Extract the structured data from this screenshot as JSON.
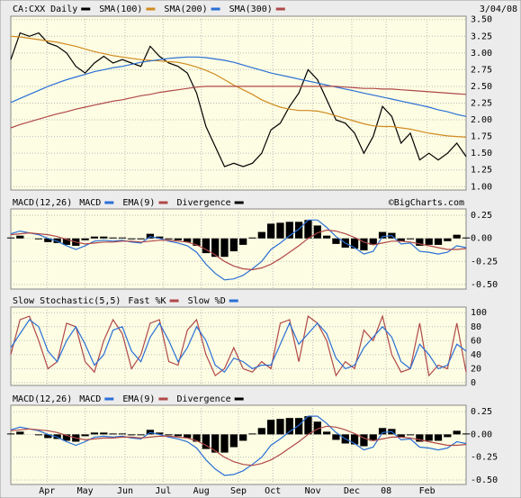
{
  "chart_data": [
    {
      "type": "line",
      "date": "3/04/08",
      "ylim": [
        0.95,
        3.55
      ],
      "yticks": [
        {
          "value": 1.0,
          "label": "1.00"
        },
        1.25,
        {
          "value": 1.5,
          "label": "1.50"
        },
        1.75,
        {
          "value": 2.0,
          "label": "2.00"
        },
        2.25,
        {
          "value": 2.5,
          "label": "2.50"
        },
        2.75,
        {
          "value": 3.0,
          "label": "3.00"
        },
        3.25,
        {
          "value": 3.5,
          "label": "3.50"
        }
      ],
      "series": [
        {
          "name": "CA:CXX Daily",
          "color": "#000000",
          "values": [
            2.9,
            3.3,
            3.25,
            3.3,
            3.15,
            3.1,
            3.0,
            2.8,
            2.7,
            2.85,
            2.95,
            2.85,
            2.9,
            2.85,
            2.8,
            3.1,
            2.95,
            2.85,
            2.8,
            2.7,
            2.4,
            1.9,
            1.6,
            1.3,
            1.35,
            1.3,
            1.35,
            1.5,
            1.85,
            1.95,
            2.2,
            2.4,
            2.75,
            2.6,
            2.3,
            2.0,
            1.95,
            1.8,
            1.5,
            1.75,
            2.2,
            2.05,
            1.65,
            1.8,
            1.4,
            1.5,
            1.4,
            1.5,
            1.65,
            1.45
          ]
        },
        {
          "name": "SMA(100)",
          "color": "#d08a20",
          "values": [
            3.25,
            3.24,
            3.22,
            3.2,
            3.18,
            3.16,
            3.13,
            3.1,
            3.06,
            3.02,
            2.99,
            2.96,
            2.94,
            2.92,
            2.9,
            2.89,
            2.88,
            2.87,
            2.86,
            2.83,
            2.79,
            2.74,
            2.68,
            2.6,
            2.52,
            2.45,
            2.38,
            2.3,
            2.24,
            2.19,
            2.16,
            2.14,
            2.14,
            2.13,
            2.1,
            2.06,
            2.02,
            1.98,
            1.94,
            1.91,
            1.9,
            1.9,
            1.88,
            1.86,
            1.83,
            1.8,
            1.78,
            1.76,
            1.75,
            1.74
          ]
        },
        {
          "name": "SMA(200)",
          "color": "#2a6fd6",
          "values": [
            2.26,
            2.32,
            2.38,
            2.44,
            2.5,
            2.55,
            2.6,
            2.64,
            2.68,
            2.72,
            2.75,
            2.78,
            2.8,
            2.83,
            2.86,
            2.88,
            2.9,
            2.92,
            2.93,
            2.94,
            2.94,
            2.93,
            2.91,
            2.89,
            2.86,
            2.82,
            2.78,
            2.74,
            2.7,
            2.67,
            2.64,
            2.61,
            2.58,
            2.55,
            2.52,
            2.49,
            2.46,
            2.43,
            2.4,
            2.37,
            2.34,
            2.31,
            2.28,
            2.25,
            2.22,
            2.19,
            2.15,
            2.12,
            2.08,
            2.05
          ]
        },
        {
          "name": "SMA(300)",
          "color": "#b04848",
          "values": [
            1.88,
            1.93,
            1.97,
            2.01,
            2.05,
            2.09,
            2.12,
            2.16,
            2.19,
            2.22,
            2.25,
            2.28,
            2.3,
            2.33,
            2.36,
            2.38,
            2.41,
            2.43,
            2.45,
            2.47,
            2.49,
            2.5,
            2.5,
            2.5,
            2.5,
            2.5,
            2.5,
            2.5,
            2.5,
            2.5,
            2.5,
            2.5,
            2.5,
            2.5,
            2.5,
            2.5,
            2.49,
            2.48,
            2.47,
            2.47,
            2.46,
            2.46,
            2.45,
            2.44,
            2.43,
            2.42,
            2.41,
            2.4,
            2.39,
            2.38
          ]
        }
      ]
    },
    {
      "type": "macd",
      "title": "MACD(12,26)",
      "note": "©BigCharts.com",
      "ylim": [
        -0.55,
        0.32
      ],
      "yticks": [
        0.25,
        {
          "value": 0.0,
          "label": "0.00"
        },
        -0.25,
        {
          "value": -0.5,
          "label": "-0.50"
        }
      ],
      "series": [
        {
          "name": "MACD",
          "color": "#2a6fd6",
          "values": [
            0.05,
            0.08,
            0.06,
            0.04,
            0.0,
            -0.03,
            -0.08,
            -0.12,
            -0.08,
            -0.03,
            -0.02,
            -0.03,
            -0.02,
            -0.04,
            -0.05,
            0.02,
            0.0,
            -0.03,
            -0.05,
            -0.08,
            -0.15,
            -0.28,
            -0.38,
            -0.45,
            -0.44,
            -0.4,
            -0.33,
            -0.25,
            -0.12,
            -0.05,
            0.03,
            0.1,
            0.2,
            0.2,
            0.12,
            0.02,
            -0.05,
            -0.1,
            -0.17,
            -0.14,
            0.02,
            0.03,
            -0.06,
            -0.05,
            -0.14,
            -0.15,
            -0.17,
            -0.15,
            -0.08,
            -0.1
          ]
        },
        {
          "name": "EMA(9)",
          "color": "#b04848",
          "values": [
            0.04,
            0.05,
            0.06,
            0.05,
            0.04,
            0.02,
            -0.01,
            -0.04,
            -0.06,
            -0.05,
            -0.04,
            -0.04,
            -0.03,
            -0.03,
            -0.04,
            -0.03,
            -0.02,
            -0.02,
            -0.03,
            -0.04,
            -0.07,
            -0.12,
            -0.18,
            -0.25,
            -0.3,
            -0.33,
            -0.34,
            -0.32,
            -0.28,
            -0.22,
            -0.15,
            -0.08,
            0.0,
            0.06,
            0.09,
            0.08,
            0.05,
            0.01,
            -0.04,
            -0.07,
            -0.05,
            -0.03,
            -0.03,
            -0.04,
            -0.06,
            -0.08,
            -0.1,
            -0.12,
            -0.12,
            -0.11
          ]
        },
        {
          "name": "Divergence",
          "color": "#000000",
          "style": "bar",
          "values": [
            0.01,
            0.03,
            0.0,
            -0.01,
            -0.04,
            -0.05,
            -0.07,
            -0.08,
            -0.02,
            0.02,
            0.02,
            0.01,
            0.01,
            -0.01,
            -0.01,
            0.05,
            0.02,
            -0.01,
            -0.02,
            -0.04,
            -0.08,
            -0.16,
            -0.2,
            -0.2,
            -0.14,
            -0.07,
            0.01,
            0.07,
            0.16,
            0.17,
            0.18,
            0.18,
            0.2,
            0.14,
            0.03,
            -0.06,
            -0.1,
            -0.11,
            -0.13,
            -0.07,
            0.07,
            0.06,
            -0.03,
            -0.01,
            -0.08,
            -0.07,
            -0.07,
            -0.03,
            0.04,
            0.01
          ]
        }
      ]
    },
    {
      "type": "line",
      "title": "Slow Stochastic(5,5)",
      "ylim": [
        -4,
        108
      ],
      "yticks": [
        0,
        20,
        40,
        60,
        80,
        100
      ],
      "series": [
        {
          "name": "Fast %K",
          "color": "#b04848",
          "values": [
            40,
            90,
            95,
            60,
            20,
            30,
            85,
            80,
            30,
            15,
            60,
            90,
            70,
            20,
            40,
            85,
            90,
            30,
            25,
            75,
            90,
            40,
            10,
            20,
            50,
            20,
            15,
            30,
            20,
            85,
            90,
            30,
            95,
            85,
            60,
            10,
            30,
            20,
            75,
            60,
            95,
            40,
            15,
            20,
            85,
            10,
            25,
            20,
            85,
            15
          ]
        },
        {
          "name": "Slow %D",
          "color": "#2a6fd6",
          "values": [
            50,
            70,
            90,
            80,
            45,
            30,
            60,
            80,
            55,
            25,
            40,
            75,
            80,
            45,
            30,
            65,
            85,
            60,
            30,
            50,
            80,
            60,
            25,
            15,
            35,
            30,
            20,
            25,
            25,
            55,
            85,
            55,
            70,
            85,
            70,
            35,
            20,
            25,
            50,
            65,
            80,
            65,
            30,
            20,
            55,
            40,
            20,
            25,
            55,
            45
          ]
        }
      ]
    },
    {
      "type": "macd",
      "title": "MACD(12,26)",
      "ylim": [
        -0.55,
        0.32
      ],
      "yticks": [
        0.25,
        {
          "value": 0.0,
          "label": "0.00"
        },
        -0.25,
        {
          "value": -0.5,
          "label": "-0.50"
        }
      ],
      "xlim": [
        0,
        49
      ],
      "xticks": [
        {
          "value": 3.9,
          "label": "Apr"
        },
        {
          "value": 8,
          "label": "May"
        },
        {
          "value": 12.3,
          "label": "Jun"
        },
        {
          "value": 16.4,
          "label": "Jul"
        },
        {
          "value": 20.5,
          "label": "Aug"
        },
        {
          "value": 24.5,
          "label": "Sep"
        },
        {
          "value": 28.2,
          "label": "Oct"
        },
        {
          "value": 32.5,
          "label": "Nov"
        },
        {
          "value": 36.7,
          "label": "Dec"
        },
        {
          "value": 40.4,
          "label": "08"
        },
        {
          "value": 44.8,
          "label": "Feb"
        }
      ],
      "series": [
        {
          "name": "MACD",
          "color": "#2a6fd6",
          "values": [
            0.05,
            0.08,
            0.06,
            0.04,
            0.0,
            -0.03,
            -0.08,
            -0.12,
            -0.08,
            -0.03,
            -0.02,
            -0.03,
            -0.02,
            -0.04,
            -0.05,
            0.02,
            0.0,
            -0.03,
            -0.05,
            -0.08,
            -0.15,
            -0.28,
            -0.38,
            -0.45,
            -0.44,
            -0.4,
            -0.33,
            -0.25,
            -0.12,
            -0.05,
            0.03,
            0.1,
            0.2,
            0.2,
            0.12,
            0.02,
            -0.05,
            -0.1,
            -0.17,
            -0.14,
            0.02,
            0.03,
            -0.06,
            -0.05,
            -0.14,
            -0.15,
            -0.17,
            -0.15,
            -0.08,
            -0.1
          ]
        },
        {
          "name": "EMA(9)",
          "color": "#b04848",
          "values": [
            0.04,
            0.05,
            0.06,
            0.05,
            0.04,
            0.02,
            -0.01,
            -0.04,
            -0.06,
            -0.05,
            -0.04,
            -0.04,
            -0.03,
            -0.03,
            -0.04,
            -0.03,
            -0.02,
            -0.02,
            -0.03,
            -0.04,
            -0.07,
            -0.12,
            -0.18,
            -0.25,
            -0.3,
            -0.33,
            -0.34,
            -0.32,
            -0.28,
            -0.22,
            -0.15,
            -0.08,
            0.0,
            0.06,
            0.09,
            0.08,
            0.05,
            0.01,
            -0.04,
            -0.07,
            -0.05,
            -0.03,
            -0.03,
            -0.04,
            -0.06,
            -0.08,
            -0.1,
            -0.12,
            -0.12,
            -0.11
          ]
        },
        {
          "name": "Divergence",
          "color": "#000000",
          "style": "bar",
          "values": [
            0.01,
            0.03,
            0.0,
            -0.01,
            -0.04,
            -0.05,
            -0.07,
            -0.08,
            -0.02,
            0.02,
            0.02,
            0.01,
            0.01,
            -0.01,
            -0.01,
            0.05,
            0.02,
            -0.01,
            -0.02,
            -0.04,
            -0.08,
            -0.16,
            -0.2,
            -0.2,
            -0.14,
            -0.07,
            0.01,
            0.07,
            0.16,
            0.17,
            0.18,
            0.18,
            0.2,
            0.14,
            0.03,
            -0.06,
            -0.1,
            -0.11,
            -0.13,
            -0.07,
            0.07,
            0.06,
            -0.03,
            -0.01,
            -0.08,
            -0.07,
            -0.07,
            -0.03,
            0.04,
            0.01
          ]
        }
      ]
    }
  ]
}
